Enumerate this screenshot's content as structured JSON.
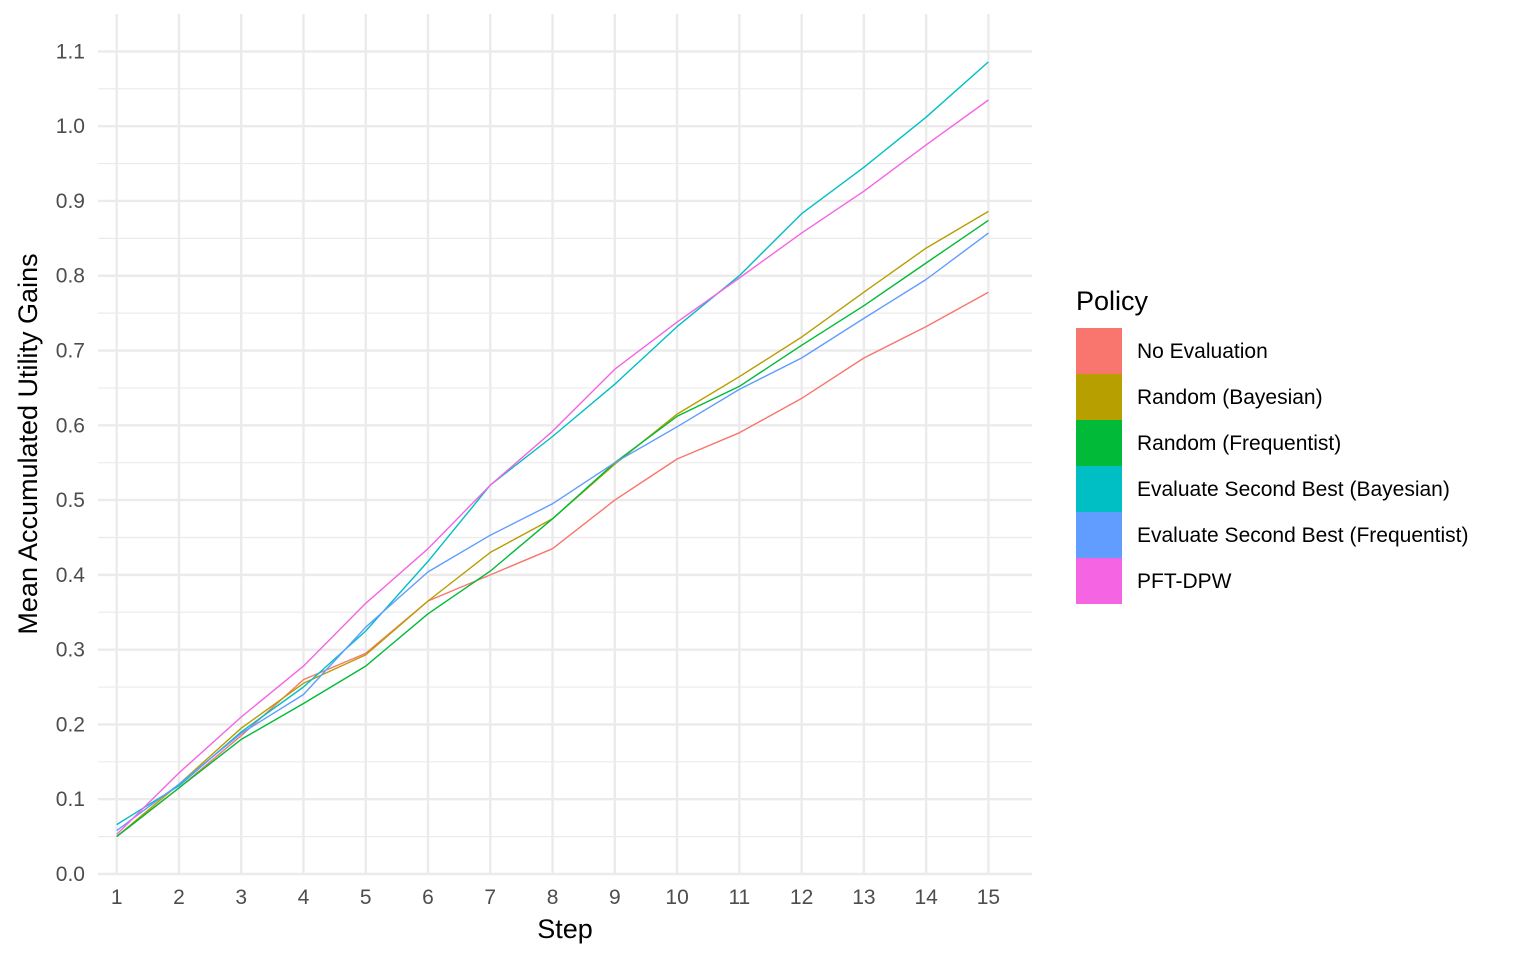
{
  "chart_data": {
    "type": "line",
    "title": "",
    "xlabel": "Step",
    "ylabel": "Mean Accumulated Utility Gains",
    "x": [
      1,
      2,
      3,
      4,
      5,
      6,
      7,
      8,
      9,
      10,
      11,
      12,
      13,
      14,
      15
    ],
    "x_ticks": [
      "1",
      "2",
      "3",
      "4",
      "5",
      "6",
      "7",
      "8",
      "9",
      "10",
      "11",
      "12",
      "13",
      "14",
      "15"
    ],
    "y_ticks": [
      "0.0",
      "0.1",
      "0.2",
      "0.3",
      "0.4",
      "0.5",
      "0.6",
      "0.7",
      "0.8",
      "0.9",
      "1.0",
      "1.1"
    ],
    "xlim": [
      0.7,
      15.7
    ],
    "ylim": [
      0,
      1.15
    ],
    "grid": true,
    "legend": {
      "title": "Policy",
      "position": "right"
    },
    "series": [
      {
        "name": "No Evaluation",
        "color": "#F8766D",
        "values": [
          0.05,
          0.115,
          0.185,
          0.26,
          0.295,
          0.365,
          0.4,
          0.435,
          0.5,
          0.555,
          0.59,
          0.636,
          0.69,
          0.732,
          0.778
        ]
      },
      {
        "name": "Random (Bayesian)",
        "color": "#B79F00",
        "values": [
          0.05,
          0.12,
          0.195,
          0.255,
          0.293,
          0.365,
          0.43,
          0.475,
          0.548,
          0.615,
          0.665,
          0.718,
          0.778,
          0.837,
          0.886
        ]
      },
      {
        "name": "Random (Frequentist)",
        "color": "#00BA38",
        "values": [
          0.05,
          0.115,
          0.18,
          0.228,
          0.278,
          0.348,
          0.405,
          0.475,
          0.55,
          0.612,
          0.652,
          0.707,
          0.76,
          0.817,
          0.874
        ]
      },
      {
        "name": "Evaluate Second Best (Bayesian)",
        "color": "#00BFC4",
        "values": [
          0.066,
          0.118,
          0.19,
          0.25,
          0.325,
          0.418,
          0.52,
          0.585,
          0.655,
          0.732,
          0.8,
          0.883,
          0.945,
          1.012,
          1.086
        ]
      },
      {
        "name": "Evaluate Second Best (Frequentist)",
        "color": "#619CFF",
        "values": [
          0.058,
          0.12,
          0.188,
          0.24,
          0.33,
          0.404,
          0.453,
          0.495,
          0.55,
          0.598,
          0.648,
          0.69,
          0.743,
          0.795,
          0.857
        ]
      },
      {
        "name": "PFT-DPW",
        "color": "#F564E3",
        "values": [
          0.053,
          0.135,
          0.21,
          0.278,
          0.362,
          0.435,
          0.52,
          0.592,
          0.675,
          0.738,
          0.797,
          0.857,
          0.913,
          0.975,
          1.035
        ]
      }
    ]
  }
}
